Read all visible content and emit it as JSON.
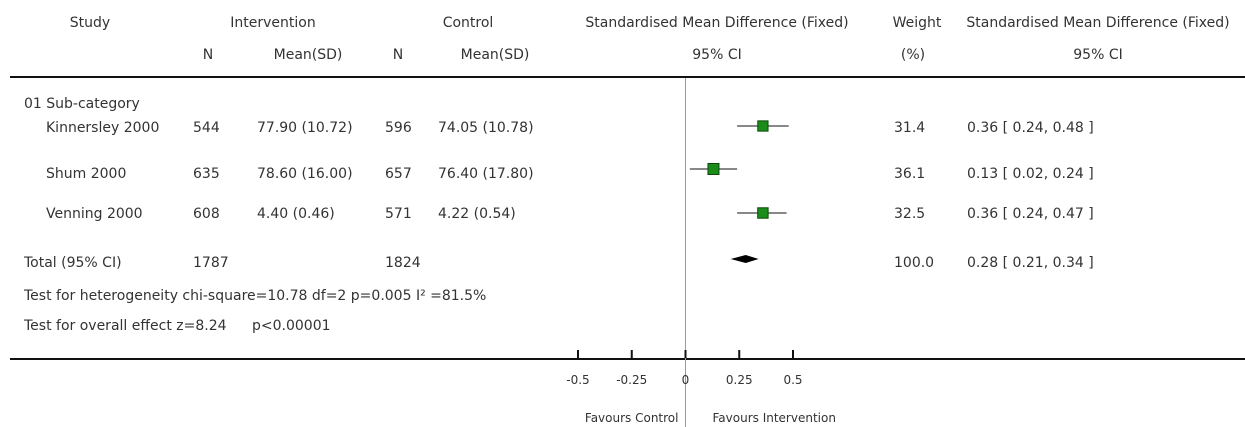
{
  "header": {
    "study": "Study",
    "intervention": "Intervention",
    "control": "Control",
    "smd_fixed": "Standardised Mean Difference (Fixed)",
    "weight": "Weight",
    "smd_fixed_2": "Standardised Mean Difference (Fixed)",
    "n_int": "N",
    "mean_int": "Mean(SD)",
    "n_ctl": "N",
    "mean_ctl": "Mean(SD)",
    "ci_plot": "95% CI",
    "weight_unit": "(%)",
    "ci_text": "95% CI"
  },
  "subcategory": "01 Sub-category",
  "rows": [
    {
      "study": "Kinnersley 2000",
      "n_int": "544",
      "mean_int": "77.90 (10.72)",
      "n_ctl": "596",
      "mean_ctl": "74.05 (10.78)",
      "weight": "31.4",
      "ci_text": "0.36 [ 0.24, 0.48 ]"
    },
    {
      "study": "Shum 2000",
      "n_int": "635",
      "mean_int": "78.60 (16.00)",
      "n_ctl": "657",
      "mean_ctl": "76.40 (17.80)",
      "weight": "36.1",
      "ci_text": "0.13 [ 0.02, 0.24 ]"
    },
    {
      "study": "Venning 2000",
      "n_int": "608",
      "mean_int": "4.40 (0.46)",
      "n_ctl": "571",
      "mean_ctl": "4.22 (0.54)",
      "weight": "32.5",
      "ci_text": "0.36 [ 0.24, 0.47 ]"
    }
  ],
  "total": {
    "label": "Total (95% CI)",
    "n_int": "1787",
    "n_ctl": "1824",
    "weight": "100.0",
    "ci_text": "0.28 [ 0.21, 0.34 ]"
  },
  "heterogeneity": "Test for heterogeneity chi-square=10.78 df=2 p=0.005 I² =81.5%",
  "overall_label": "Test for overall effect z=8.24",
  "overall_p": "p<0.00001",
  "favours_left": "Favours Control",
  "favours_right": "Favours Intervention",
  "colors": {
    "marker": "#1a8c1a",
    "line": "#111111",
    "axis_zero": "#999999"
  },
  "chart_data": {
    "type": "forest",
    "xlim": [
      -0.5,
      0.5
    ],
    "ticks": [
      -0.5,
      -0.25,
      0,
      0.25,
      0.5
    ],
    "tick_labels": [
      "-0.5",
      "-0.25",
      "0",
      "0.25",
      "0.5"
    ],
    "studies": [
      {
        "study": "Kinnersley 2000",
        "estimate": 0.36,
        "ci": [
          0.24,
          0.48
        ],
        "weight": 31.4
      },
      {
        "study": "Shum 2000",
        "estimate": 0.13,
        "ci": [
          0.02,
          0.24
        ],
        "weight": 36.1
      },
      {
        "study": "Venning 2000",
        "estimate": 0.36,
        "ci": [
          0.24,
          0.47
        ],
        "weight": 32.5
      }
    ],
    "pooled": {
      "estimate": 0.28,
      "ci": [
        0.21,
        0.34
      ],
      "weight": 100.0
    }
  }
}
